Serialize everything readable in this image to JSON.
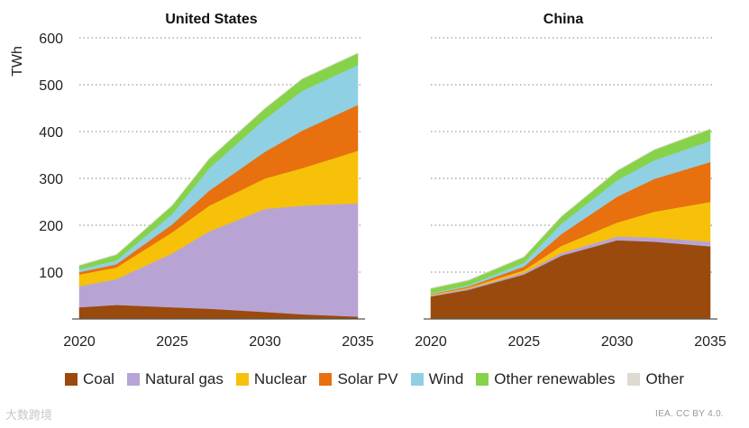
{
  "chart_data": [
    {
      "type": "area",
      "stacked": true,
      "title": "United States",
      "ylabel": "TWh",
      "xlabel": "",
      "ylim": [
        0,
        600
      ],
      "yticks": [
        100,
        200,
        300,
        400,
        500,
        600
      ],
      "xlim": [
        2020,
        2035
      ],
      "xticks": [
        2020,
        2025,
        2030,
        2035
      ],
      "grid": "horizontal dotted",
      "x": [
        2020,
        2022,
        2025,
        2027,
        2030,
        2032,
        2035
      ],
      "series": [
        {
          "name": "Coal",
          "values": [
            25,
            30,
            25,
            22,
            15,
            10,
            5
          ]
        },
        {
          "name": "Natural gas",
          "values": [
            45,
            55,
            115,
            165,
            220,
            232,
            242
          ]
        },
        {
          "name": "Nuclear",
          "values": [
            25,
            25,
            45,
            55,
            65,
            80,
            112
          ]
        },
        {
          "name": "Solar PV",
          "values": [
            5,
            7,
            17,
            32,
            57,
            80,
            98
          ]
        },
        {
          "name": "Wind",
          "values": [
            6,
            8,
            22,
            48,
            70,
            85,
            85
          ]
        },
        {
          "name": "Other renewables",
          "values": [
            8,
            12,
            18,
            20,
            22,
            25,
            25
          ]
        },
        {
          "name": "Other",
          "values": [
            1,
            1,
            1,
            1,
            1,
            1,
            1
          ]
        }
      ]
    },
    {
      "type": "area",
      "stacked": true,
      "title": "China",
      "ylabel": "",
      "xlabel": "",
      "ylim": [
        0,
        600
      ],
      "xlim": [
        2020,
        2035
      ],
      "xticks": [
        2020,
        2025,
        2030,
        2035
      ],
      "grid": "horizontal dotted",
      "x": [
        2020,
        2022,
        2025,
        2027,
        2030,
        2032,
        2035
      ],
      "series": [
        {
          "name": "Coal",
          "values": [
            48,
            62,
            95,
            135,
            168,
            165,
            155
          ]
        },
        {
          "name": "Natural gas",
          "values": [
            2,
            3,
            4,
            6,
            8,
            9,
            10
          ]
        },
        {
          "name": "Nuclear",
          "values": [
            2,
            2,
            5,
            15,
            30,
            55,
            85
          ]
        },
        {
          "name": "Solar PV",
          "values": [
            1,
            2,
            8,
            25,
            55,
            70,
            85
          ]
        },
        {
          "name": "Wind",
          "values": [
            2,
            3,
            8,
            22,
            35,
            40,
            45
          ]
        },
        {
          "name": "Other renewables",
          "values": [
            10,
            10,
            12,
            15,
            20,
            22,
            25
          ]
        },
        {
          "name": "Other",
          "values": [
            1,
            1,
            1,
            1,
            1,
            1,
            1
          ]
        }
      ]
    }
  ],
  "legend": [
    {
      "label": "Coal",
      "color": "#9a4a0c"
    },
    {
      "label": "Natural gas",
      "color": "#b8a4d4"
    },
    {
      "label": "Nuclear",
      "color": "#f7c10a"
    },
    {
      "label": "Solar PV",
      "color": "#e8700f"
    },
    {
      "label": "Wind",
      "color": "#8fd0e3"
    },
    {
      "label": "Other renewables",
      "color": "#86d34a"
    },
    {
      "label": "Other",
      "color": "#dedad0"
    }
  ],
  "watermark_left": "大数跨境",
  "source_note": "IEA. CC BY 4.0."
}
